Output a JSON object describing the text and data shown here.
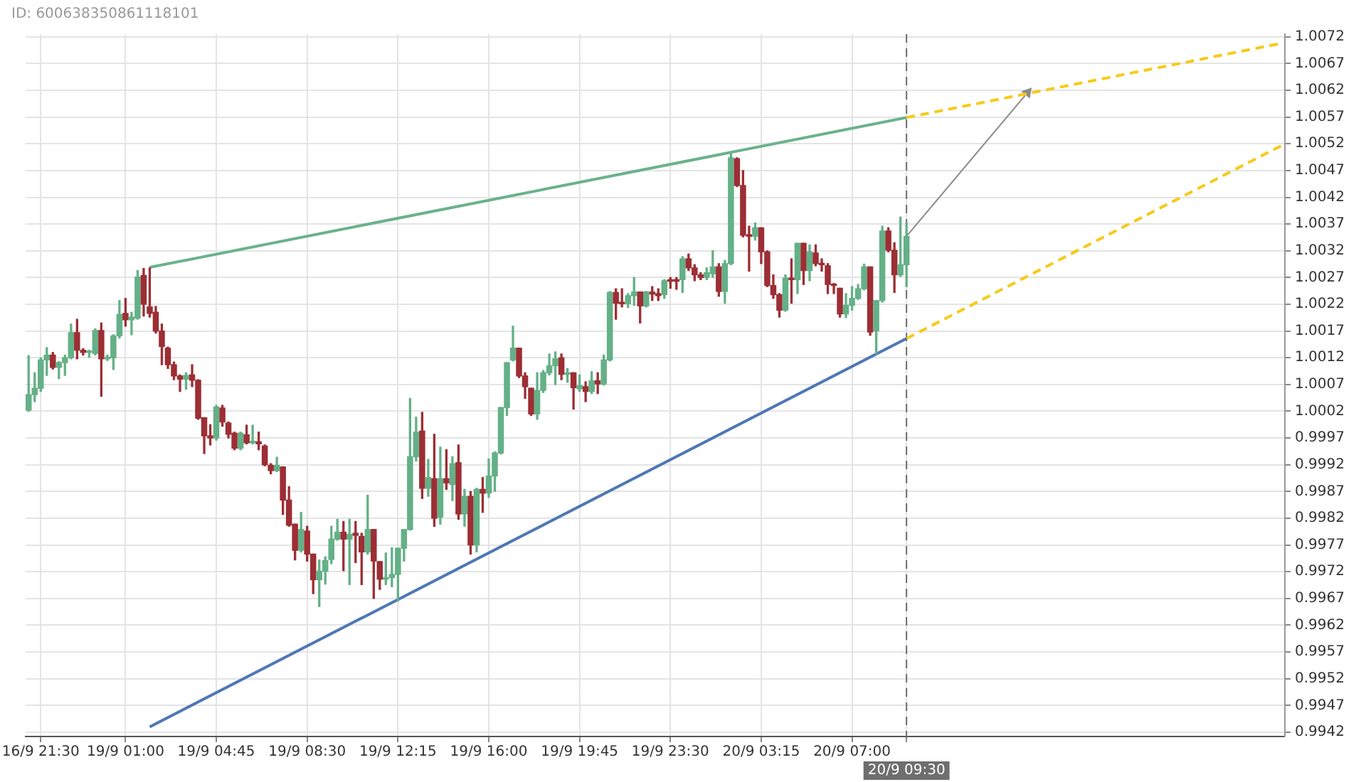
{
  "chart_data": {
    "type": "candlestick",
    "annotations": [
      "ID: 600638350861118101"
    ],
    "categories": [
      null,
      null,
      "16/9 21:30",
      null,
      null,
      null,
      null,
      null,
      null,
      null,
      null,
      null,
      null,
      null,
      null,
      null,
      "19/9 01:00",
      null,
      null,
      null,
      null,
      null,
      null,
      null,
      null,
      null,
      null,
      null,
      null,
      null,
      null,
      "19/9 04:45",
      null,
      null,
      null,
      null,
      null,
      null,
      null,
      null,
      null,
      null,
      null,
      null,
      null,
      null,
      "19/9 08:30",
      null,
      null,
      null,
      null,
      null,
      null,
      null,
      null,
      null,
      null,
      null,
      null,
      null,
      null,
      "19/9 12:15",
      null,
      null,
      null,
      null,
      null,
      null,
      null,
      null,
      null,
      null,
      null,
      null,
      null,
      null,
      "19/9 16:00",
      null,
      null,
      null,
      null,
      null,
      null,
      null,
      null,
      null,
      null,
      null,
      null,
      null,
      null,
      "19/9 19:45",
      null,
      null,
      null,
      null,
      null,
      null,
      null,
      null,
      null,
      null,
      null,
      null,
      null,
      null,
      "19/9 23:30",
      null,
      null,
      null,
      null,
      null,
      null,
      null,
      null,
      null,
      null,
      null,
      null,
      null,
      null,
      "20/9 03:15",
      null,
      null,
      null,
      null,
      null,
      null,
      null,
      null,
      null,
      null,
      null,
      null,
      null,
      null,
      "20/9 07:00",
      null,
      null,
      null,
      null,
      null,
      null,
      null,
      null,
      "20/9 09:30",
      null,
      null,
      null,
      null,
      null,
      null,
      null,
      null,
      null,
      null,
      null,
      null,
      null,
      null,
      null,
      null,
      null,
      null,
      null,
      null,
      null,
      null,
      null,
      null,
      null,
      null,
      null,
      null,
      null,
      null,
      null,
      null,
      null,
      null,
      null,
      null,
      null,
      null,
      null,
      null,
      null,
      null,
      null,
      null,
      null,
      null,
      null,
      null,
      null,
      null,
      null,
      null,
      null,
      null,
      null,
      null,
      null,
      null,
      null,
      null,
      null,
      null
    ],
    "ohlc": [
      [
        1.00022,
        1.00124,
        1.0002,
        1.00051
      ],
      [
        1.00051,
        1.00092,
        1.00038,
        1.00063
      ],
      [
        1.00063,
        1.0012,
        1.00057,
        1.00116
      ],
      [
        1.00116,
        1.00139,
        1.00087,
        1.00125
      ],
      [
        1.00125,
        1.0013,
        1.00099,
        1.00102
      ],
      [
        1.00102,
        1.00113,
        1.00081,
        1.00111
      ],
      [
        1.00111,
        1.00125,
        1.00087,
        1.0012
      ],
      [
        1.0012,
        1.00183,
        1.00118,
        1.00167
      ],
      [
        1.00167,
        1.00192,
        1.00118,
        1.00134
      ],
      [
        1.00134,
        1.00137,
        1.00125,
        1.0013
      ],
      [
        1.0013,
        1.00134,
        1.00121,
        1.00131
      ],
      [
        1.00128,
        1.00174,
        1.00125,
        1.00171
      ],
      [
        1.00171,
        1.00185,
        1.00048,
        1.00118
      ],
      [
        1.00118,
        1.00125,
        1.00115,
        1.00121
      ],
      [
        1.0012,
        1.00163,
        1.00098,
        1.00161
      ],
      [
        1.00161,
        1.00227,
        1.00157,
        1.00201
      ],
      [
        1.00203,
        1.00231,
        1.00179,
        1.00191
      ],
      [
        1.00191,
        1.00205,
        1.00163,
        1.00196
      ],
      [
        1.00194,
        1.00283,
        1.00192,
        1.00271
      ],
      [
        1.00274,
        1.00287,
        1.00198,
        1.0022
      ],
      [
        1.00215,
        1.00288,
        1.00196,
        1.00203
      ],
      [
        1.00205,
        1.00216,
        1.00166,
        1.0017
      ],
      [
        1.0017,
        1.00183,
        1.00107,
        1.00141
      ],
      [
        1.00138,
        1.0014,
        1.001,
        1.00107
      ],
      [
        1.00107,
        1.00112,
        1.00079,
        1.00086
      ],
      [
        1.00086,
        1.00088,
        1.00057,
        1.0008
      ],
      [
        1.0008,
        1.00092,
        1.00061,
        1.00087
      ],
      [
        1.00088,
        1.00107,
        1.00066,
        1.00078
      ],
      [
        1.00078,
        1.00079,
        1.00005,
        1.00007
      ],
      [
        1.00008,
        1.00008,
        0.99941,
        0.99974
      ],
      [
        0.99974,
        0.99995,
        0.99957,
        0.9997
      ],
      [
        0.9997,
        1.00031,
        0.99966,
        1.00028
      ],
      [
        1.00026,
        1.00031,
        0.99992,
        1.0
      ],
      [
        0.99998,
        1.0,
        0.9997,
        0.99977
      ],
      [
        0.99979,
        0.99981,
        0.99948,
        0.99951
      ],
      [
        0.99951,
        0.99981,
        0.99948,
        0.99979
      ],
      [
        0.99976,
        0.99994,
        0.99959,
        0.99961
      ],
      [
        0.99961,
        0.99994,
        0.99959,
        0.99964
      ],
      [
        0.99963,
        0.99981,
        0.99948,
        0.99959
      ],
      [
        0.99955,
        0.99957,
        0.99918,
        0.9992
      ],
      [
        0.99919,
        0.99922,
        0.99903,
        0.99909
      ],
      [
        0.99909,
        0.99934,
        0.99907,
        0.99919
      ],
      [
        0.99916,
        0.99916,
        0.99827,
        0.99854
      ],
      [
        0.99854,
        0.99879,
        0.99805,
        0.99807
      ],
      [
        0.99809,
        0.99809,
        0.99742,
        0.9976
      ],
      [
        0.9976,
        0.99831,
        0.99757,
        0.99799
      ],
      [
        0.99796,
        0.99805,
        0.9974,
        0.99753
      ],
      [
        0.99753,
        0.99753,
        0.99679,
        0.99705
      ],
      [
        0.99705,
        0.99742,
        0.99655,
        0.99721
      ],
      [
        0.99721,
        0.99748,
        0.99697,
        0.99741
      ],
      [
        0.99743,
        0.99805,
        0.99735,
        0.99781
      ],
      [
        0.99781,
        0.99818,
        0.99779,
        0.99794
      ],
      [
        0.99794,
        0.99814,
        0.99722,
        0.99781
      ],
      [
        0.99781,
        0.99818,
        0.99696,
        0.9979
      ],
      [
        0.99792,
        0.99814,
        0.99737,
        0.99788
      ],
      [
        0.99786,
        0.99792,
        0.99696,
        0.99757
      ],
      [
        0.99757,
        0.99863,
        0.99753,
        0.99799
      ],
      [
        0.99799,
        0.99799,
        0.9967,
        0.9974
      ],
      [
        0.99739,
        0.99739,
        0.99687,
        0.99706
      ],
      [
        0.99706,
        0.99755,
        0.99696,
        0.99709
      ],
      [
        0.99709,
        0.99765,
        0.99692,
        0.99715
      ],
      [
        0.99715,
        0.99764,
        0.99665,
        0.99764
      ],
      [
        0.99764,
        0.99799,
        0.9974,
        0.99799
      ],
      [
        0.99799,
        1.00044,
        0.99798,
        0.99935
      ],
      [
        0.99935,
        1.00009,
        0.99927,
        0.99981
      ],
      [
        0.99983,
        1.00018,
        0.99857,
        0.99876
      ],
      [
        0.99876,
        0.9993,
        0.99861,
        0.99896
      ],
      [
        0.99894,
        0.99977,
        0.99805,
        0.9982
      ],
      [
        0.99822,
        0.99953,
        0.99809,
        0.99894
      ],
      [
        0.99894,
        0.99948,
        0.99874,
        0.99886
      ],
      [
        0.99883,
        0.99935,
        0.99853,
        0.99922
      ],
      [
        0.99924,
        0.99957,
        0.99818,
        0.99828
      ],
      [
        0.99828,
        0.99874,
        0.99805,
        0.99861
      ],
      [
        0.99861,
        0.9987,
        0.99753,
        0.9977
      ],
      [
        0.9977,
        0.99876,
        0.99757,
        0.99874
      ],
      [
        0.99874,
        0.99896,
        0.99831,
        0.99867
      ],
      [
        0.99867,
        0.99931,
        0.99859,
        0.99899
      ],
      [
        0.99899,
        0.99944,
        0.9987,
        0.99942
      ],
      [
        0.99942,
        1.00027,
        0.9994,
        1.00027
      ],
      [
        1.00027,
        1.00111,
        1.00012,
        1.00111
      ],
      [
        1.00116,
        1.00179,
        1.00114,
        1.00138
      ],
      [
        1.00138,
        1.00138,
        1.00083,
        1.00086
      ],
      [
        1.00086,
        1.00092,
        1.00044,
        1.00066
      ],
      [
        1.00063,
        1.00063,
        1.00012,
        1.00015
      ],
      [
        1.00015,
        1.00092,
        1.00005,
        1.00059
      ],
      [
        1.00059,
        1.00096,
        1.00055,
        1.00092
      ],
      [
        1.00092,
        1.00127,
        1.00088,
        1.00105
      ],
      [
        1.00105,
        1.00131,
        1.0007,
        1.00118
      ],
      [
        1.0012,
        1.00127,
        1.00079,
        1.00089
      ],
      [
        1.00089,
        1.001,
        1.00074,
        1.00092
      ],
      [
        1.00092,
        1.00092,
        1.00024,
        1.00064
      ],
      [
        1.00062,
        1.00088,
        1.00057,
        1.00068
      ],
      [
        1.00066,
        1.00075,
        1.00038,
        1.00057
      ],
      [
        1.00057,
        1.00094,
        1.00053,
        1.00077
      ],
      [
        1.00077,
        1.00092,
        1.00053,
        1.00071
      ],
      [
        1.00071,
        1.00125,
        1.00069,
        1.00116
      ],
      [
        1.00116,
        1.00244,
        1.00114,
        1.00242
      ],
      [
        1.00242,
        1.00249,
        1.00192,
        1.00222
      ],
      [
        1.00223,
        1.00249,
        1.00215,
        1.00221
      ],
      [
        1.00221,
        1.0024,
        1.00214,
        1.00236
      ],
      [
        1.00236,
        1.0027,
        1.00218,
        1.00243
      ],
      [
        1.00243,
        1.00243,
        1.00185,
        1.00217
      ],
      [
        1.00217,
        1.00244,
        1.00215,
        1.00243
      ],
      [
        1.00243,
        1.00253,
        1.00227,
        1.00239
      ],
      [
        1.0024,
        1.00249,
        1.00227,
        1.00236
      ],
      [
        1.00238,
        1.00266,
        1.00231,
        1.00264
      ],
      [
        1.00266,
        1.0027,
        1.0025,
        1.00263
      ],
      [
        1.00266,
        1.0027,
        1.00248,
        1.00263
      ],
      [
        1.00266,
        1.00309,
        1.00242,
        1.00305
      ],
      [
        1.00305,
        1.00314,
        1.00283,
        1.00288
      ],
      [
        1.00288,
        1.00294,
        1.00264,
        1.00275
      ],
      [
        1.00275,
        1.00279,
        1.00266,
        1.0027
      ],
      [
        1.0027,
        1.00288,
        1.00266,
        1.00279
      ],
      [
        1.00277,
        1.0032,
        1.0027,
        1.0029
      ],
      [
        1.0029,
        1.00296,
        1.00235,
        1.00244
      ],
      [
        1.00244,
        1.00302,
        1.00222,
        1.00296
      ],
      [
        1.00296,
        1.00502,
        1.00294,
        1.00494
      ],
      [
        1.00492,
        1.00494,
        1.0044,
        1.00442
      ],
      [
        1.00442,
        1.0047,
        1.00346,
        1.00349
      ],
      [
        1.0035,
        1.00366,
        1.00282,
        1.00347
      ],
      [
        1.00347,
        1.00372,
        1.0034,
        1.00363
      ],
      [
        1.00363,
        1.00363,
        1.00296,
        1.00318
      ],
      [
        1.00318,
        1.0032,
        1.00253,
        1.00255
      ],
      [
        1.00255,
        1.00275,
        1.00231,
        1.00238
      ],
      [
        1.00238,
        1.0024,
        1.00196,
        1.00209
      ],
      [
        1.00209,
        1.00275,
        1.00207,
        1.00269
      ],
      [
        1.00269,
        1.00305,
        1.00222,
        1.00266
      ],
      [
        1.00266,
        1.00334,
        1.0024,
        1.00334
      ],
      [
        1.00334,
        1.00334,
        1.00257,
        1.00283
      ],
      [
        1.00283,
        1.00331,
        1.00264,
        1.00318
      ],
      [
        1.00316,
        1.00331,
        1.00292,
        1.00296
      ],
      [
        1.00296,
        1.00305,
        1.00282,
        1.00294
      ],
      [
        1.00292,
        1.00296,
        1.0024,
        1.00257
      ],
      [
        1.00257,
        1.00259,
        1.0024,
        1.00255
      ],
      [
        1.0025,
        1.0025,
        1.00196,
        1.00202
      ],
      [
        1.00202,
        1.0024,
        1.00195,
        1.00218
      ],
      [
        1.00218,
        1.00253,
        1.00209,
        1.00231
      ],
      [
        1.00231,
        1.00257,
        1.00229,
        1.00249
      ],
      [
        1.00249,
        1.00295,
        1.00247,
        1.0029
      ],
      [
        1.0029,
        1.0029,
        1.00162,
        1.00168
      ],
      [
        1.0017,
        1.00227,
        1.00127,
        1.00227
      ],
      [
        1.00227,
        1.00366,
        1.00224,
        1.00357
      ],
      [
        1.00357,
        1.00363,
        1.00318,
        1.00321
      ],
      [
        1.00321,
        1.00335,
        1.00242,
        1.00275
      ],
      [
        1.00275,
        1.00383,
        1.00272,
        1.00294
      ],
      [
        1.00294,
        1.00372,
        1.00253,
        1.00347
      ],
      null,
      null,
      null,
      null,
      null,
      null,
      null,
      null,
      null,
      null,
      null,
      null,
      null,
      null,
      null,
      null,
      null,
      null,
      null,
      null,
      null,
      null,
      null,
      null,
      null,
      null,
      null,
      null,
      null,
      null,
      null,
      null,
      null,
      null,
      null,
      null,
      null,
      null,
      null,
      null,
      null,
      null,
      null,
      null,
      null,
      null,
      null,
      null,
      null,
      null,
      null,
      null,
      null,
      null,
      null,
      null,
      null,
      null,
      null,
      null,
      null,
      null
    ],
    "colors": [
      "#64b087",
      "#64b087",
      "#64b087",
      "#64b087",
      "#9c2e34",
      "#64b087",
      "#64b087",
      "#64b087",
      "#9c2e34",
      "#9c2e34",
      "#64b087",
      "#64b087",
      "#9c2e34",
      "#64b087",
      "#64b087",
      "#64b087",
      "#9c2e34",
      "#64b087",
      "#64b087",
      "#9c2e34",
      "#9c2e34",
      "#9c2e34",
      "#9c2e34",
      "#9c2e34",
      "#9c2e34",
      "#9c2e34",
      "#64b087",
      "#9c2e34",
      "#9c2e34",
      "#9c2e34",
      "#9c2e34",
      "#64b087",
      "#9c2e34",
      "#9c2e34",
      "#9c2e34",
      "#64b087",
      "#9c2e34",
      "#64b087",
      "#9c2e34",
      "#9c2e34",
      "#9c2e34",
      "#64b087",
      "#9c2e34",
      "#9c2e34",
      "#9c2e34",
      "#64b087",
      "#9c2e34",
      "#9c2e34",
      "#64b087",
      "#64b087",
      "#64b087",
      "#64b087",
      "#9c2e34",
      "#64b087",
      "#9c2e34",
      "#9c2e34",
      "#64b087",
      "#9c2e34",
      "#9c2e34",
      "#64b087",
      "#64b087",
      "#64b087",
      "#64b087",
      "#64b087",
      "#64b087",
      "#9c2e34",
      "#64b087",
      "#9c2e34",
      "#64b087",
      "#9c2e34",
      "#64b087",
      "#9c2e34",
      "#64b087",
      "#9c2e34",
      "#64b087",
      "#9c2e34",
      "#64b087",
      "#64b087",
      "#64b087",
      "#64b087",
      "#64b087",
      "#9c2e34",
      "#9c2e34",
      "#9c2e34",
      "#64b087",
      "#64b087",
      "#64b087",
      "#64b087",
      "#9c2e34",
      "#64b087",
      "#9c2e34",
      "#64b087",
      "#9c2e34",
      "#64b087",
      "#9c2e34",
      "#64b087",
      "#64b087",
      "#9c2e34",
      "#9c2e34",
      "#64b087",
      "#64b087",
      "#9c2e34",
      "#64b087",
      "#9c2e34",
      "#9c2e34",
      "#64b087",
      "#9c2e34",
      "#9c2e34",
      "#64b087",
      "#9c2e34",
      "#9c2e34",
      "#9c2e34",
      "#64b087",
      "#64b087",
      "#9c2e34",
      "#64b087",
      "#64b087",
      "#9c2e34",
      "#9c2e34",
      "#9c2e34",
      "#64b087",
      "#9c2e34",
      "#9c2e34",
      "#9c2e34",
      "#9c2e34",
      "#64b087",
      "#9c2e34",
      "#64b087",
      "#9c2e34",
      "#64b087",
      "#9c2e34",
      "#9c2e34",
      "#9c2e34",
      "#9c2e34",
      "#9c2e34",
      "#64b087",
      "#64b087",
      "#64b087",
      "#64b087",
      "#9c2e34",
      "#64b087",
      "#64b087",
      "#9c2e34",
      "#9c2e34",
      "#64b087",
      "#64b087",
      null,
      null,
      null,
      null,
      null,
      null,
      null,
      null,
      null,
      null,
      null,
      null,
      null,
      null,
      null,
      null,
      null,
      null,
      null,
      null,
      null,
      null,
      null,
      null,
      null,
      null,
      null,
      null,
      null,
      null,
      null,
      null,
      null,
      null,
      null,
      null,
      null,
      null,
      null,
      null,
      null,
      null,
      null,
      null,
      null,
      null,
      null,
      null,
      null,
      null,
      null,
      null,
      null,
      null,
      null,
      null,
      null,
      null,
      null,
      null,
      null,
      null
    ],
    "series": [
      {
        "type": "line",
        "color": "#6ab28c",
        "values": [
          null,
          null,
          null,
          null,
          null,
          null,
          null,
          null,
          null,
          null,
          null,
          null,
          null,
          null,
          null,
          null,
          null,
          null,
          null,
          null,
          1.00289,
          null,
          null,
          null,
          null,
          null,
          null,
          null,
          null,
          null,
          null,
          null,
          null,
          null,
          null,
          null,
          null,
          null,
          null,
          null,
          null,
          null,
          null,
          null,
          null,
          null,
          null,
          null,
          null,
          null,
          null,
          null,
          null,
          null,
          null,
          null,
          null,
          null,
          null,
          null,
          null,
          null,
          null,
          null,
          null,
          null,
          null,
          null,
          null,
          null,
          null,
          null,
          null,
          null,
          null,
          null,
          null,
          null,
          null,
          null,
          null,
          null,
          null,
          null,
          null,
          null,
          null,
          null,
          null,
          null,
          null,
          null,
          null,
          null,
          null,
          null,
          null,
          null,
          null,
          null,
          null,
          null,
          null,
          null,
          null,
          null,
          null,
          null,
          null,
          null,
          null,
          null,
          null,
          null,
          null,
          null,
          null,
          null,
          null,
          null,
          null,
          null,
          null,
          null,
          null,
          null,
          null,
          null,
          null,
          null,
          null,
          null,
          null,
          null,
          null,
          null,
          null,
          null,
          null,
          null,
          null,
          null,
          null,
          null,
          null,
          1.00569,
          null,
          null,
          null,
          null,
          null,
          null,
          null,
          null,
          null,
          null,
          null,
          null,
          null,
          null,
          null,
          null,
          null,
          null,
          null,
          null,
          null,
          null,
          null,
          null,
          null,
          null,
          null,
          null,
          null,
          null,
          null,
          null,
          null,
          null,
          null,
          null,
          null,
          null,
          null,
          null,
          null,
          null,
          null,
          null,
          null,
          null,
          null,
          null,
          null,
          null,
          null,
          null,
          null,
          null,
          null,
          null,
          null,
          null,
          null,
          null,
          null,
          null
        ]
      },
      {
        "type": "line",
        "color": "#4f77b5",
        "values": [
          null,
          null,
          null,
          null,
          null,
          null,
          null,
          null,
          null,
          null,
          null,
          null,
          null,
          null,
          null,
          null,
          null,
          null,
          null,
          null,
          0.9943,
          null,
          null,
          null,
          null,
          null,
          null,
          null,
          null,
          null,
          null,
          null,
          null,
          null,
          null,
          null,
          null,
          null,
          null,
          null,
          null,
          null,
          null,
          null,
          null,
          null,
          null,
          null,
          null,
          null,
          null,
          null,
          null,
          null,
          null,
          null,
          null,
          null,
          null,
          null,
          null,
          null,
          null,
          null,
          null,
          null,
          null,
          null,
          null,
          null,
          null,
          null,
          null,
          null,
          null,
          null,
          null,
          null,
          null,
          null,
          null,
          null,
          null,
          null,
          null,
          null,
          null,
          null,
          null,
          null,
          null,
          null,
          null,
          null,
          null,
          null,
          null,
          null,
          null,
          null,
          null,
          null,
          null,
          null,
          null,
          null,
          null,
          null,
          null,
          null,
          null,
          null,
          null,
          null,
          null,
          null,
          null,
          null,
          null,
          null,
          null,
          null,
          null,
          null,
          null,
          null,
          null,
          null,
          null,
          null,
          null,
          null,
          null,
          null,
          null,
          null,
          null,
          null,
          null,
          null,
          null,
          null,
          null,
          null,
          null,
          1.00156,
          null,
          null,
          null,
          null,
          null,
          null,
          null,
          null,
          null,
          null,
          null,
          null,
          null,
          null,
          null,
          null,
          null,
          null,
          null,
          null,
          null,
          null,
          null,
          null,
          null,
          null,
          null,
          null,
          null,
          null,
          null,
          null,
          null,
          null,
          null,
          null,
          null,
          null,
          null,
          null,
          null,
          null,
          null,
          null,
          null,
          null,
          null,
          null,
          null,
          null,
          null,
          null,
          null,
          null,
          null,
          null,
          null,
          null,
          null,
          null,
          null,
          null
        ]
      },
      {
        "type": "line",
        "color": "#f7ca18",
        "line_style": "dashed",
        "values": [
          null,
          null,
          null,
          null,
          null,
          null,
          null,
          null,
          null,
          null,
          null,
          null,
          null,
          null,
          null,
          null,
          null,
          null,
          null,
          null,
          null,
          null,
          null,
          null,
          null,
          null,
          null,
          null,
          null,
          null,
          null,
          null,
          null,
          null,
          null,
          null,
          null,
          null,
          null,
          null,
          null,
          null,
          null,
          null,
          null,
          null,
          null,
          null,
          null,
          null,
          null,
          null,
          null,
          null,
          null,
          null,
          null,
          null,
          null,
          null,
          null,
          null,
          null,
          null,
          null,
          null,
          null,
          null,
          null,
          null,
          null,
          null,
          null,
          null,
          null,
          null,
          null,
          null,
          null,
          null,
          null,
          null,
          null,
          null,
          null,
          null,
          null,
          null,
          null,
          null,
          null,
          null,
          null,
          null,
          null,
          null,
          null,
          null,
          null,
          null,
          null,
          null,
          null,
          null,
          null,
          null,
          null,
          null,
          null,
          null,
          null,
          null,
          null,
          null,
          null,
          null,
          null,
          null,
          null,
          null,
          null,
          null,
          null,
          null,
          null,
          null,
          null,
          null,
          null,
          null,
          null,
          null,
          null,
          null,
          null,
          null,
          null,
          null,
          null,
          null,
          null,
          null,
          null,
          null,
          null,
          1.00569,
          null,
          null,
          null,
          null,
          null,
          null,
          null,
          null,
          null,
          null,
          null,
          null,
          null,
          null,
          null,
          null,
          null,
          null,
          null,
          null,
          null,
          null,
          null,
          null,
          null,
          null,
          null,
          null,
          null,
          null,
          null,
          null,
          null,
          null,
          null,
          null,
          null,
          null,
          null,
          null,
          null,
          null,
          null,
          null,
          null,
          null,
          null,
          null,
          null,
          null,
          null,
          null,
          null,
          null,
          null,
          null,
          null,
          null,
          null,
          null,
          null,
          1.00708
        ]
      },
      {
        "type": "line",
        "color": "#f7ca18",
        "line_style": "dashed",
        "values": [
          null,
          null,
          null,
          null,
          null,
          null,
          null,
          null,
          null,
          null,
          null,
          null,
          null,
          null,
          null,
          null,
          null,
          null,
          null,
          null,
          null,
          null,
          null,
          null,
          null,
          null,
          null,
          null,
          null,
          null,
          null,
          null,
          null,
          null,
          null,
          null,
          null,
          null,
          null,
          null,
          null,
          null,
          null,
          null,
          null,
          null,
          null,
          null,
          null,
          null,
          null,
          null,
          null,
          null,
          null,
          null,
          null,
          null,
          null,
          null,
          null,
          null,
          null,
          null,
          null,
          null,
          null,
          null,
          null,
          null,
          null,
          null,
          null,
          null,
          null,
          null,
          null,
          null,
          null,
          null,
          null,
          null,
          null,
          null,
          null,
          null,
          null,
          null,
          null,
          null,
          null,
          null,
          null,
          null,
          null,
          null,
          null,
          null,
          null,
          null,
          null,
          null,
          null,
          null,
          null,
          null,
          null,
          null,
          null,
          null,
          null,
          null,
          null,
          null,
          null,
          null,
          null,
          null,
          null,
          null,
          null,
          null,
          null,
          null,
          null,
          null,
          null,
          null,
          null,
          null,
          null,
          null,
          null,
          null,
          null,
          null,
          null,
          null,
          null,
          null,
          null,
          null,
          null,
          null,
          null,
          1.00156,
          null,
          null,
          null,
          null,
          null,
          null,
          null,
          null,
          null,
          null,
          null,
          null,
          null,
          null,
          null,
          null,
          null,
          null,
          null,
          null,
          null,
          null,
          null,
          null,
          null,
          null,
          null,
          null,
          null,
          null,
          null,
          null,
          null,
          null,
          null,
          null,
          null,
          null,
          null,
          null,
          null,
          null,
          null,
          null,
          null,
          null,
          null,
          null,
          null,
          null,
          null,
          null,
          null,
          null,
          null,
          null,
          null,
          null,
          null,
          null,
          null,
          1.00517
        ]
      },
      {
        "type": "line",
        "color": "#8a8a8a",
        "marker": "triangle",
        "values": [
          null,
          null,
          null,
          null,
          null,
          null,
          null,
          null,
          null,
          null,
          null,
          null,
          null,
          null,
          null,
          null,
          null,
          null,
          null,
          null,
          null,
          null,
          null,
          null,
          null,
          null,
          null,
          null,
          null,
          null,
          null,
          null,
          null,
          null,
          null,
          null,
          null,
          null,
          null,
          null,
          null,
          null,
          null,
          null,
          null,
          null,
          null,
          null,
          null,
          null,
          null,
          null,
          null,
          null,
          null,
          null,
          null,
          null,
          null,
          null,
          null,
          null,
          null,
          null,
          null,
          null,
          null,
          null,
          null,
          null,
          null,
          null,
          null,
          null,
          null,
          null,
          null,
          null,
          null,
          null,
          null,
          null,
          null,
          null,
          null,
          null,
          null,
          null,
          null,
          null,
          null,
          null,
          null,
          null,
          null,
          null,
          null,
          null,
          null,
          null,
          null,
          null,
          null,
          null,
          null,
          null,
          null,
          null,
          null,
          null,
          null,
          null,
          null,
          null,
          null,
          null,
          null,
          null,
          null,
          null,
          null,
          null,
          null,
          null,
          null,
          null,
          null,
          null,
          null,
          null,
          null,
          null,
          null,
          null,
          null,
          null,
          null,
          null,
          null,
          null,
          null,
          null,
          null,
          null,
          null,
          1.00347,
          null,
          null,
          null,
          null,
          null,
          null,
          null,
          null,
          null,
          null,
          null,
          null,
          null,
          null,
          null,
          null,
          null,
          null,
          null,
          1.00616,
          null,
          null,
          null,
          null,
          null,
          null,
          null,
          null,
          null,
          null,
          null,
          null,
          null,
          null,
          null,
          null,
          null,
          null,
          null,
          null,
          null,
          null,
          null,
          null,
          null,
          null,
          null,
          null,
          null,
          null,
          null,
          null,
          null,
          null,
          null,
          null,
          null,
          null,
          null,
          null,
          null,
          null
        ]
      }
    ],
    "ref_lines": [
      {
        "axis": "x",
        "value": "20/9 09:30",
        "color": "#6e6e6e",
        "line_style": "dashed"
      }
    ],
    "ylim": [
      0.99412,
      1.00725
    ],
    "yticks": [
      0.9942,
      0.9947,
      0.9952,
      0.9957,
      0.9962,
      0.9967,
      0.9972,
      0.9977,
      0.9982,
      0.9987,
      0.9992,
      0.9997,
      1.0002,
      1.0007,
      1.0012,
      1.0017,
      1.0022,
      1.0027,
      1.0032,
      1.0037,
      1.0042,
      1.0047,
      1.0052,
      1.0057,
      1.0062,
      1.0067,
      1.0072
    ],
    "grid": true
  }
}
